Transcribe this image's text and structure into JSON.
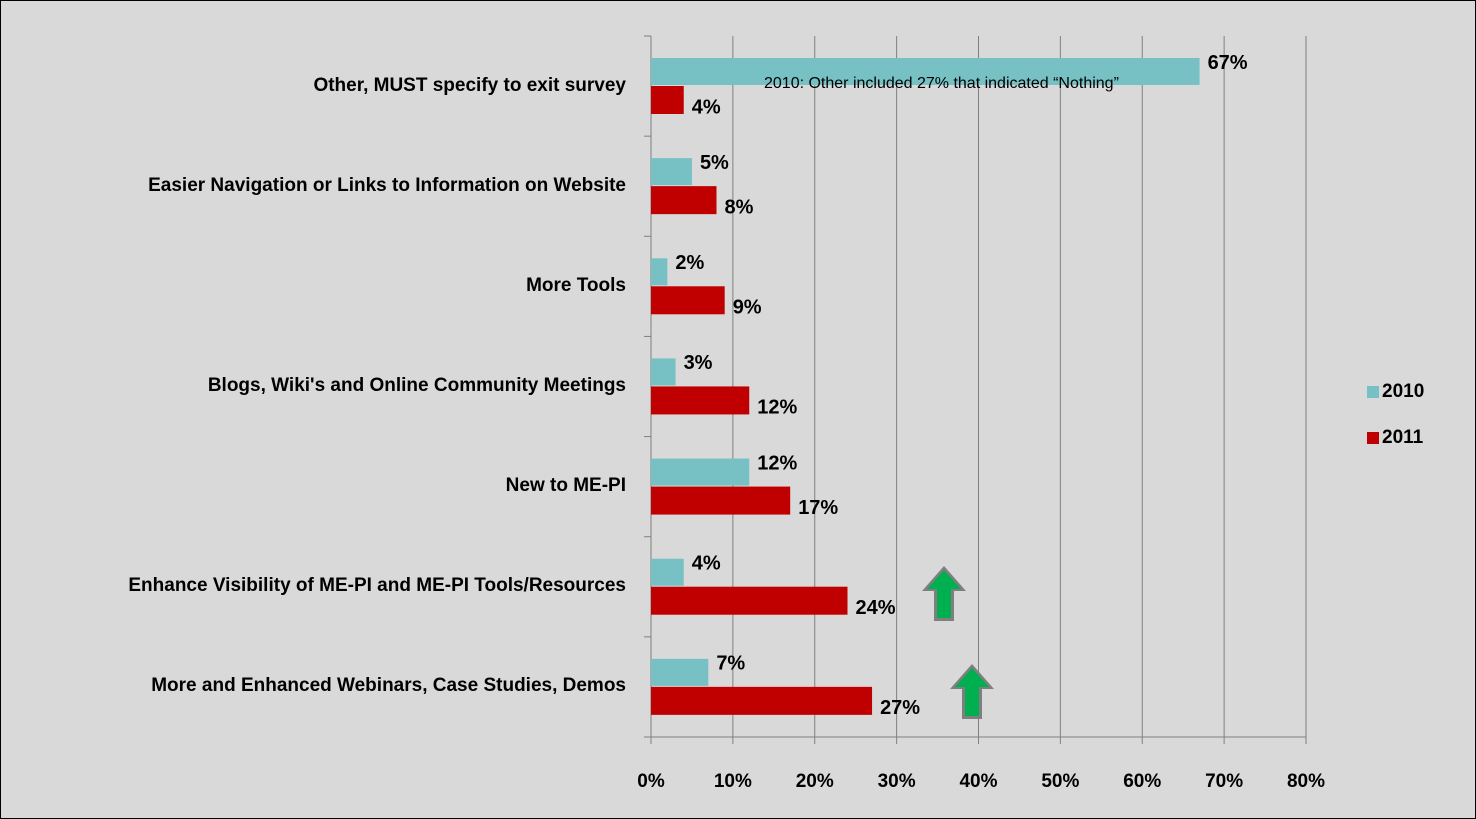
{
  "chart_data": {
    "type": "barh",
    "categories": [
      "Other, MUST specify to exit survey",
      "Easier Navigation or Links to Information on Website",
      "More Tools",
      "Blogs, Wiki's and Online Community Meetings",
      "New to ME-PI",
      "Enhance Visibility of ME-PI and ME-PI Tools/Resources",
      "More and Enhanced Webinars, Case Studies, Demos"
    ],
    "series": [
      {
        "name": "2010",
        "color": "#77c1c4",
        "values": [
          67,
          5,
          2,
          3,
          12,
          4,
          7
        ],
        "value_labels": [
          "67%",
          "5%",
          "2%",
          "3%",
          "12%",
          "4%",
          "7%"
        ]
      },
      {
        "name": "2011",
        "color": "#c00000",
        "values": [
          4,
          8,
          9,
          12,
          17,
          24,
          27
        ],
        "value_labels": [
          "4%",
          "8%",
          "9%",
          "12%",
          "17%",
          "24%",
          "27%"
        ]
      }
    ],
    "xlim": [
      0,
      80
    ],
    "xticks": [
      {
        "value": 0,
        "label": "0%"
      },
      {
        "value": 10,
        "label": "10%"
      },
      {
        "value": 20,
        "label": "20%"
      },
      {
        "value": 30,
        "label": "30%"
      },
      {
        "value": 40,
        "label": "40%"
      },
      {
        "value": 50,
        "label": "50%"
      },
      {
        "value": 60,
        "label": "60%"
      },
      {
        "value": 70,
        "label": "70%"
      },
      {
        "value": 80,
        "label": "80%"
      }
    ],
    "grid": true,
    "legend": "right",
    "annotation": "2010: Other included 27% that indicated “Nothing”"
  }
}
